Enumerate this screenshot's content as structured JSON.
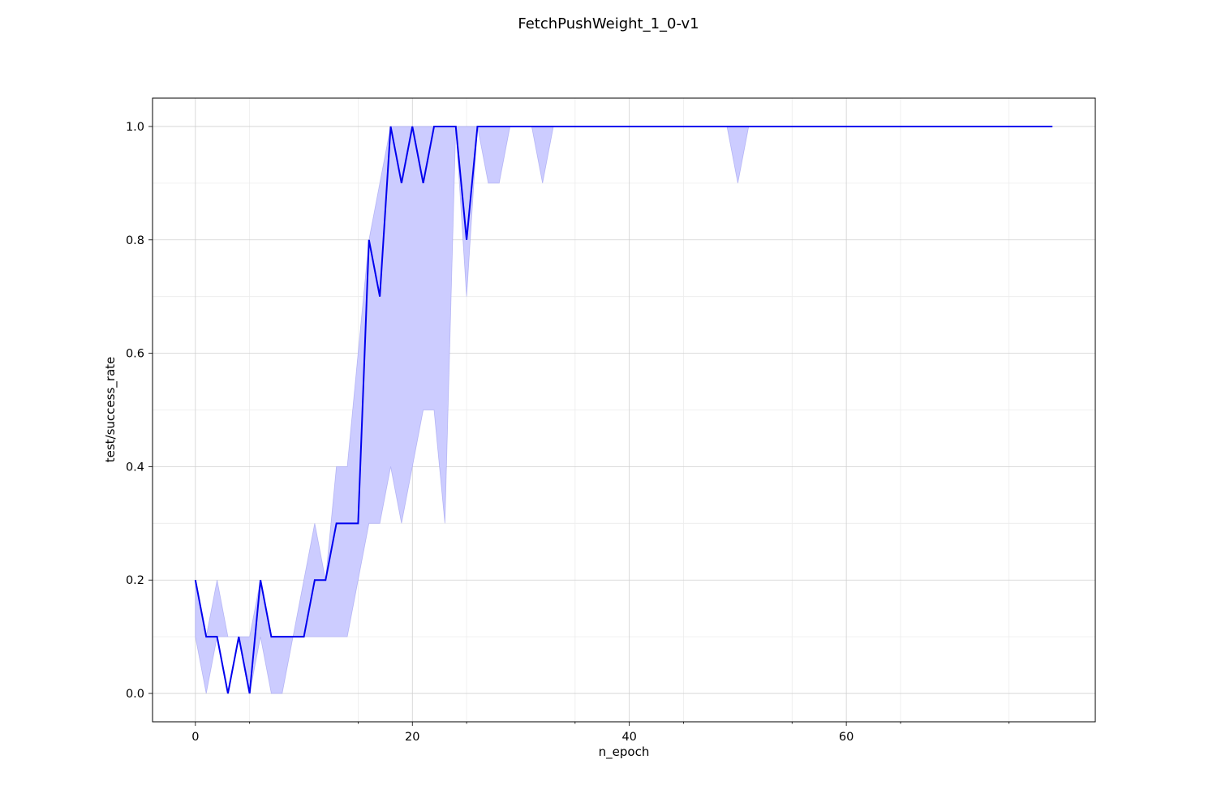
{
  "chart_data": {
    "type": "line",
    "title": "FetchPushWeight_1_0-v1",
    "xlabel": "n_epoch",
    "ylabel": "test/success_rate",
    "xlim": [
      -3.95,
      82.95
    ],
    "ylim": [
      -0.05,
      1.05
    ],
    "xticks": [
      0,
      20,
      40,
      60
    ],
    "xtick_labels": [
      "0",
      "20",
      "40",
      "60"
    ],
    "yticks": [
      0.0,
      0.2,
      0.4,
      0.6,
      0.8,
      1.0
    ],
    "ytick_labels": [
      "0.0",
      "0.2",
      "0.4",
      "0.6",
      "0.8",
      "1.0"
    ],
    "grid": true,
    "legend": "none",
    "colors": {
      "line": "#0000ee",
      "band": "#ccccff",
      "band_edge": "#9999ee",
      "grid": "#d0d0d0",
      "grid_minor": "#ececec"
    },
    "series": [
      {
        "x": [
          0,
          1,
          2,
          3,
          4,
          5,
          6,
          7,
          8,
          9,
          10,
          11,
          12,
          13,
          14,
          15,
          16,
          17,
          18,
          19,
          20,
          21,
          22,
          23,
          24,
          25,
          26,
          27,
          28,
          29,
          30,
          31,
          32,
          33,
          34,
          35,
          36,
          37,
          38,
          39,
          40,
          41,
          42,
          43,
          44,
          45,
          46,
          47,
          48,
          49,
          50,
          51,
          52,
          53,
          54,
          55,
          56,
          57,
          58,
          59,
          60,
          61,
          62,
          63,
          64,
          65,
          66,
          67,
          68,
          69,
          70,
          71,
          72,
          73,
          74,
          75,
          76,
          77,
          78,
          79
        ],
        "values": [
          0.2,
          0.1,
          0.1,
          0.0,
          0.1,
          0.0,
          0.2,
          0.1,
          0.1,
          0.1,
          0.1,
          0.2,
          0.2,
          0.3,
          0.3,
          0.3,
          0.8,
          0.7,
          1.0,
          0.9,
          1.0,
          0.9,
          1.0,
          1.0,
          1.0,
          0.8,
          1.0,
          1.0,
          1.0,
          1.0,
          1.0,
          1.0,
          1.0,
          1.0,
          1.0,
          1.0,
          1.0,
          1.0,
          1.0,
          1.0,
          1.0,
          1.0,
          1.0,
          1.0,
          1.0,
          1.0,
          1.0,
          1.0,
          1.0,
          1.0,
          1.0,
          1.0,
          1.0,
          1.0,
          1.0,
          1.0,
          1.0,
          1.0,
          1.0,
          1.0,
          1.0,
          1.0,
          1.0,
          1.0,
          1.0,
          1.0,
          1.0,
          1.0,
          1.0,
          1.0,
          1.0,
          1.0,
          1.0,
          1.0,
          1.0,
          1.0,
          1.0,
          1.0,
          1.0,
          1.0
        ],
        "lower": [
          0.1,
          0.0,
          0.1,
          0.1,
          0.1,
          0.0,
          0.1,
          0.0,
          0.0,
          0.1,
          0.1,
          0.1,
          0.1,
          0.1,
          0.1,
          0.2,
          0.3,
          0.3,
          0.4,
          0.3,
          0.4,
          0.5,
          0.5,
          0.3,
          1.0,
          0.7,
          1.0,
          0.9,
          0.9,
          1.0,
          1.0,
          1.0,
          0.9,
          1.0,
          1.0,
          1.0,
          1.0,
          1.0,
          1.0,
          1.0,
          1.0,
          1.0,
          1.0,
          1.0,
          1.0,
          1.0,
          1.0,
          1.0,
          1.0,
          1.0,
          0.9,
          1.0,
          1.0,
          1.0,
          1.0,
          1.0,
          1.0,
          1.0,
          1.0,
          1.0,
          1.0,
          1.0,
          1.0,
          1.0,
          1.0,
          1.0,
          1.0,
          1.0,
          1.0,
          1.0,
          1.0,
          1.0,
          1.0,
          1.0,
          1.0,
          1.0,
          1.0,
          1.0,
          1.0,
          1.0
        ],
        "upper": [
          0.2,
          0.1,
          0.2,
          0.1,
          0.1,
          0.1,
          0.2,
          0.1,
          0.1,
          0.1,
          0.2,
          0.3,
          0.2,
          0.4,
          0.4,
          0.6,
          0.8,
          0.9,
          1.0,
          1.0,
          1.0,
          1.0,
          1.0,
          1.0,
          1.0,
          1.0,
          1.0,
          1.0,
          1.0,
          1.0,
          1.0,
          1.0,
          1.0,
          1.0,
          1.0,
          1.0,
          1.0,
          1.0,
          1.0,
          1.0,
          1.0,
          1.0,
          1.0,
          1.0,
          1.0,
          1.0,
          1.0,
          1.0,
          1.0,
          1.0,
          1.0,
          1.0,
          1.0,
          1.0,
          1.0,
          1.0,
          1.0,
          1.0,
          1.0,
          1.0,
          1.0,
          1.0,
          1.0,
          1.0,
          1.0,
          1.0,
          1.0,
          1.0,
          1.0,
          1.0,
          1.0,
          1.0,
          1.0,
          1.0,
          1.0,
          1.0,
          1.0,
          1.0,
          1.0,
          1.0
        ]
      }
    ]
  }
}
